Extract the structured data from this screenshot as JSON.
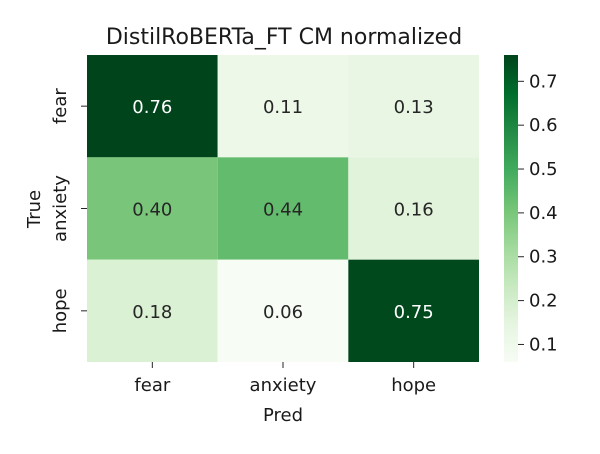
{
  "chart_data": {
    "type": "heatmap",
    "title": "DistilRoBERTa_FT CM normalized",
    "xlabel": "Pred",
    "ylabel": "True",
    "x_categories": [
      "fear",
      "anxiety",
      "hope"
    ],
    "y_categories": [
      "fear",
      "anxiety",
      "hope"
    ],
    "values": [
      [
        0.76,
        0.11,
        0.13
      ],
      [
        0.4,
        0.44,
        0.16
      ],
      [
        0.18,
        0.06,
        0.75
      ]
    ],
    "value_labels": [
      [
        "0.76",
        "0.11",
        "0.13"
      ],
      [
        "0.40",
        "0.44",
        "0.16"
      ],
      [
        "0.18",
        "0.06",
        "0.75"
      ]
    ],
    "color_scale": {
      "name": "Greens",
      "min": 0.06,
      "max": 0.76,
      "ticks": [
        "0.1",
        "0.2",
        "0.3",
        "0.4",
        "0.5",
        "0.6",
        "0.7"
      ],
      "tick_values": [
        0.1,
        0.2,
        0.3,
        0.4,
        0.5,
        0.6,
        0.7
      ]
    },
    "label_colors": {
      "dark_text": "#262626",
      "light_text": "#ffffff"
    }
  }
}
